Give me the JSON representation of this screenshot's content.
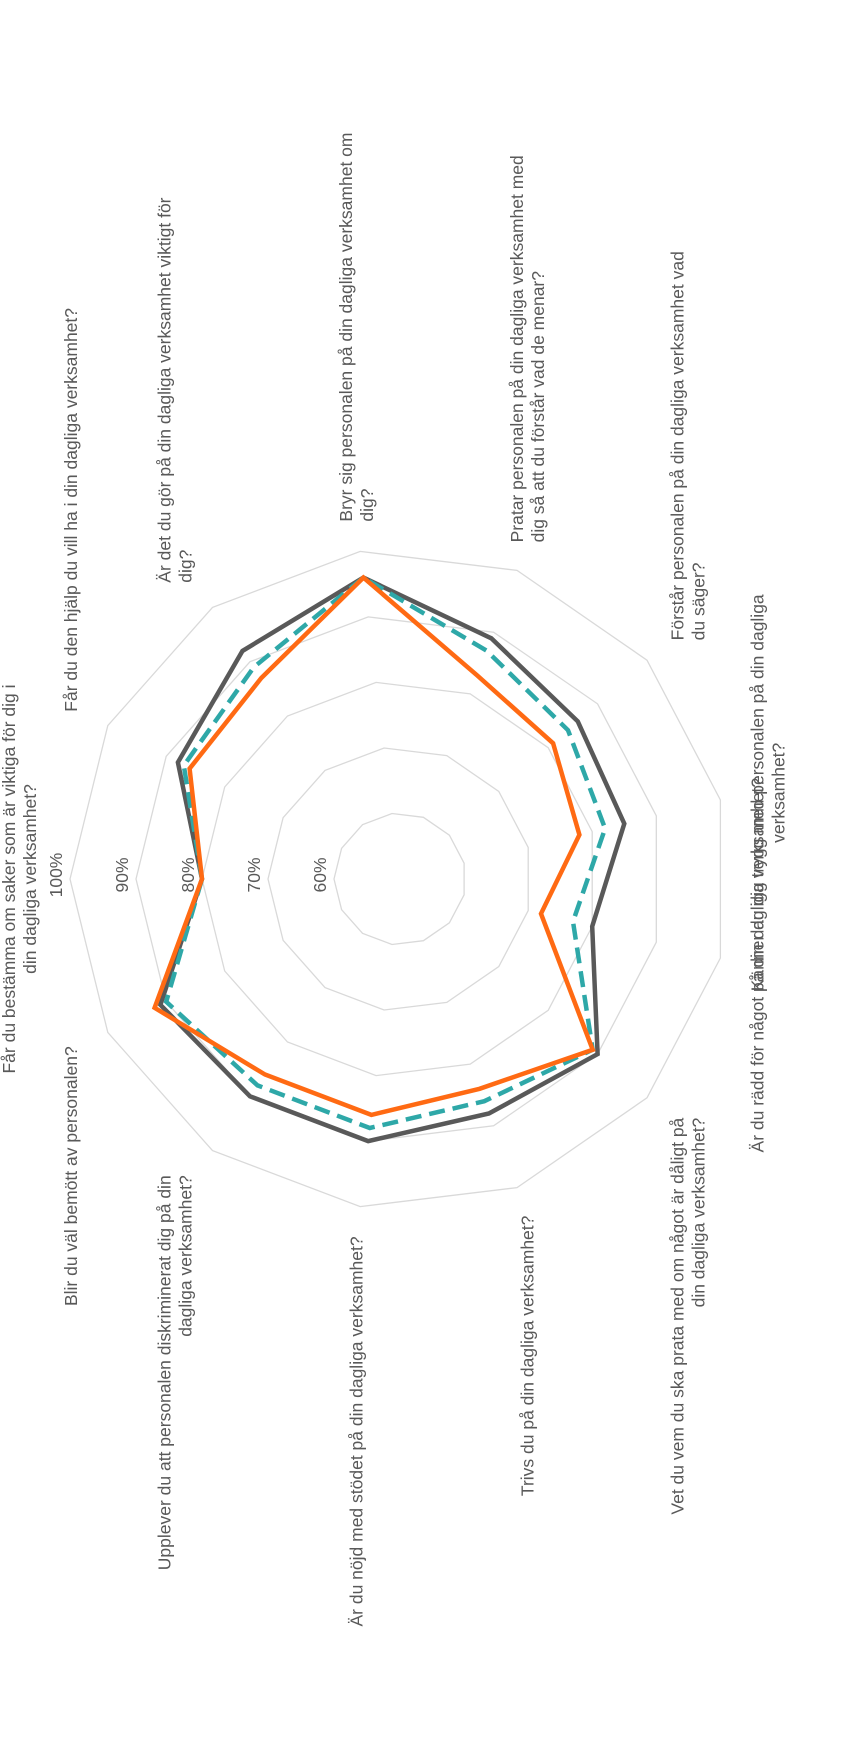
{
  "chart_data": {
    "type": "radar",
    "grid": true,
    "legend": "none",
    "r_range": [
      0.5,
      1.0
    ],
    "r_ticks": [
      {
        "value": 0.6,
        "label": "60%"
      },
      {
        "value": 0.7,
        "label": "70%"
      },
      {
        "value": 0.8,
        "label": "80%"
      },
      {
        "value": 0.9,
        "label": "90%"
      },
      {
        "value": 1.0,
        "label": "100%"
      }
    ],
    "categories": [
      [
        "Får du bestämma om saker som är viktiga för dig i",
        "din dagliga verksamhet?"
      ],
      [
        "Får du den hjälp du vill ha i din dagliga verksamhet?"
      ],
      [
        "Är det du gör på din dagliga verksamhet viktigt för",
        "dig?"
      ],
      [
        "Bryr sig personalen på din dagliga verksamhet om",
        "dig?"
      ],
      [
        "Pratar personalen på din dagliga verksamhet med",
        "dig så att du förstår vad de menar?"
      ],
      [
        "Förstår personalen på din dagliga verksamhet vad",
        "du säger?"
      ],
      [
        "Känner du dig trygg med personalen på din dagliga",
        "verksamhet?"
      ],
      [
        "Är du rädd för något på din dagliga verksamhet?"
      ],
      [
        "Vet du vem du ska prata med om något är dåligt på",
        "din dagliga verksamhet?"
      ],
      [
        "Trivs du på din dagliga verksamhet?"
      ],
      [
        "Är du nöjd med stödet på din dagliga verksamhet?"
      ],
      [
        "Upplever du att personalen diskriminerat dig på din",
        "dagliga verksamhet?"
      ],
      [
        "Blir du väl bemött av personalen?"
      ]
    ],
    "series": [
      {
        "values": [
          0.8,
          0.88,
          0.92,
          0.96,
          0.89,
          0.86,
          0.85,
          0.8,
          0.9,
          0.88,
          0.9,
          0.9,
          0.91
        ],
        "color": "#595959",
        "dash": "solid"
      },
      {
        "values": [
          0.8,
          0.87,
          0.89,
          0.96,
          0.87,
          0.84,
          0.82,
          0.77,
          0.89,
          0.86,
          0.88,
          0.88,
          0.9
        ],
        "color": "#2ea8a8",
        "dash": "dashed"
      },
      {
        "values": [
          0.8,
          0.86,
          0.87,
          0.96,
          0.83,
          0.81,
          0.78,
          0.72,
          0.89,
          0.84,
          0.86,
          0.86,
          0.92
        ],
        "color": "#ff6a13",
        "dash": "solid"
      }
    ]
  }
}
